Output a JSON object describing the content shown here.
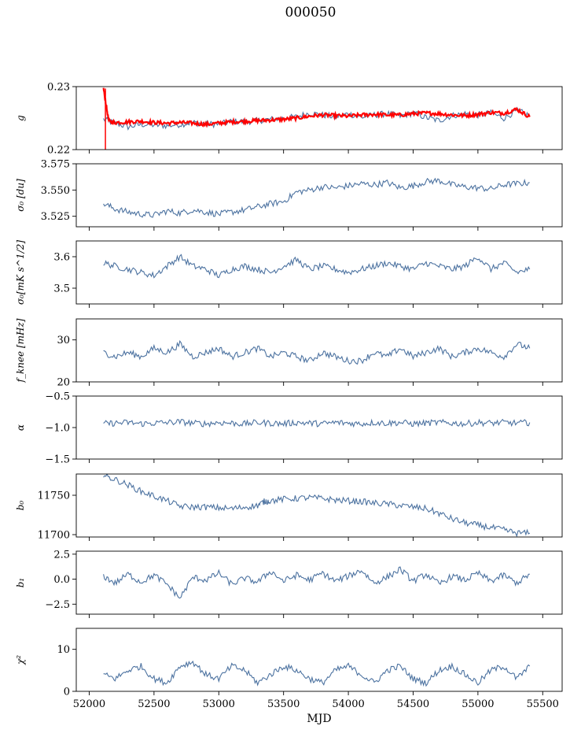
{
  "title": "000050",
  "colors": {
    "series": "#4c72a0",
    "highlight": "#ff0000",
    "axis": "#000000"
  },
  "chart_data": {
    "type": "line",
    "xlabel": "MJD",
    "xlim": [
      51900,
      55650
    ],
    "xticks": [
      52000,
      52500,
      53000,
      53500,
      54000,
      54500,
      55000,
      55500
    ],
    "panels": [
      {
        "ylabel": "g",
        "ylim": [
          0.22,
          0.23
        ],
        "yticks": [
          0.22,
          0.23
        ],
        "ytick_labels": [
          "0.22",
          "0.23"
        ],
        "series": [
          {
            "role": "noisy",
            "x": [
              52110,
              52200,
              52300,
              52400,
              52500,
              52600,
              52700,
              52800,
              52900,
              53000,
              53100,
              53200,
              53300,
              53400,
              53500,
              53600,
              53700,
              53800,
              53900,
              54000,
              54100,
              54200,
              54300,
              54400,
              54500,
              54600,
              54700,
              54800,
              54900,
              55000,
              55100,
              55200,
              55300,
              55400
            ],
            "y": [
              0.2248,
              0.2242,
              0.2236,
              0.224,
              0.2239,
              0.2238,
              0.224,
              0.2243,
              0.2241,
              0.224,
              0.2245,
              0.2244,
              0.2246,
              0.2248,
              0.225,
              0.2252,
              0.2258,
              0.2255,
              0.2252,
              0.2257,
              0.2251,
              0.2255,
              0.2257,
              0.2253,
              0.2258,
              0.2251,
              0.2246,
              0.2254,
              0.2257,
              0.2255,
              0.2258,
              0.225,
              0.2262,
              0.2254
            ]
          },
          {
            "role": "fit",
            "x": [
              52110,
              52150,
              52200,
              52300,
              52400,
              52500,
              52600,
              52700,
              52800,
              52900,
              53000,
              53100,
              53200,
              53300,
              53400,
              53500,
              53600,
              53700,
              53800,
              53900,
              54000,
              54100,
              54200,
              54300,
              54400,
              54500,
              54600,
              54700,
              54800,
              54900,
              55000,
              55100,
              55200,
              55300,
              55400
            ],
            "y": [
              0.2297,
              0.2246,
              0.2243,
              0.2244,
              0.2245,
              0.2243,
              0.2242,
              0.2243,
              0.2242,
              0.224,
              0.2242,
              0.2244,
              0.2245,
              0.2246,
              0.2247,
              0.2248,
              0.225,
              0.2253,
              0.2255,
              0.2254,
              0.2253,
              0.2255,
              0.2256,
              0.2255,
              0.2255,
              0.2257,
              0.2258,
              0.2257,
              0.2255,
              0.2254,
              0.2256,
              0.2259,
              0.2258,
              0.2264,
              0.2252
            ]
          }
        ]
      },
      {
        "ylabel": "σ₀ [du]",
        "ylim": [
          3.515,
          3.575
        ],
        "yticks": [
          3.525,
          3.55,
          3.575
        ],
        "ytick_labels": [
          "3.525",
          "3.550",
          "3.575"
        ],
        "series": [
          {
            "role": "noisy",
            "x": [
              52110,
              52200,
              52300,
              52400,
              52500,
              52600,
              52700,
              52800,
              52900,
              53000,
              53100,
              53200,
              53300,
              53400,
              53500,
              53600,
              53700,
              53800,
              53900,
              54000,
              54100,
              54200,
              54300,
              54400,
              54500,
              54600,
              54700,
              54800,
              54900,
              55000,
              55100,
              55200,
              55300,
              55400
            ],
            "y": [
              3.537,
              3.532,
              3.529,
              3.527,
              3.526,
              3.53,
              3.528,
              3.531,
              3.529,
              3.527,
              3.529,
              3.531,
              3.534,
              3.537,
              3.539,
              3.548,
              3.55,
              3.553,
              3.552,
              3.554,
              3.556,
              3.555,
              3.557,
              3.552,
              3.554,
              3.558,
              3.559,
              3.555,
              3.553,
              3.552,
              3.551,
              3.555,
              3.556,
              3.557
            ]
          }
        ]
      },
      {
        "ylabel": "σ₀[mK s^1/2]",
        "ylim": [
          3.45,
          3.65
        ],
        "yticks": [
          3.5,
          3.6
        ],
        "ytick_labels": [
          "3.5",
          "3.6"
        ],
        "series": [
          {
            "role": "noisy",
            "x": [
              52110,
              52200,
              52300,
              52400,
              52500,
              52600,
              52700,
              52800,
              52900,
              53000,
              53100,
              53200,
              53300,
              53400,
              53500,
              53600,
              53700,
              53800,
              53900,
              54000,
              54100,
              54200,
              54300,
              54400,
              54500,
              54600,
              54700,
              54800,
              54900,
              55000,
              55100,
              55200,
              55300,
              55400
            ],
            "y": [
              3.58,
              3.57,
              3.56,
              3.55,
              3.54,
              3.57,
              3.6,
              3.57,
              3.56,
              3.54,
              3.56,
              3.57,
              3.56,
              3.55,
              3.57,
              3.59,
              3.56,
              3.57,
              3.56,
              3.55,
              3.56,
              3.57,
              3.58,
              3.57,
              3.56,
              3.58,
              3.57,
              3.56,
              3.57,
              3.6,
              3.56,
              3.58,
              3.55,
              3.56
            ]
          }
        ]
      },
      {
        "ylabel": "f_knee [mHz]",
        "ylim": [
          20,
          35
        ],
        "yticks": [
          20,
          30
        ],
        "ytick_labels": [
          "20",
          "30"
        ],
        "series": [
          {
            "role": "noisy",
            "x": [
              52110,
              52200,
              52300,
              52400,
              52500,
              52600,
              52700,
              52800,
              52900,
              53000,
              53100,
              53200,
              53300,
              53400,
              53500,
              53600,
              53700,
              53800,
              53900,
              54000,
              54100,
              54200,
              54300,
              54400,
              54500,
              54600,
              54700,
              54800,
              54900,
              55000,
              55100,
              55200,
              55300,
              55400
            ],
            "y": [
              27,
              26,
              27,
              26,
              28,
              27,
              29,
              26,
              27,
              28,
              26,
              27,
              28,
              26,
              27,
              26,
              25,
              27,
              26,
              25,
              25,
              27,
              26,
              28,
              26,
              27,
              28,
              26,
              27,
              28,
              27,
              26,
              29,
              28
            ]
          }
        ]
      },
      {
        "ylabel": "α",
        "ylim": [
          -1.5,
          -0.5
        ],
        "yticks": [
          -1.5,
          -1.0,
          -0.5
        ],
        "ytick_labels": [
          "−1.5",
          "−1.0",
          "−0.5"
        ],
        "series": [
          {
            "role": "noisy",
            "x": [
              52110,
              52200,
              52300,
              52400,
              52500,
              52600,
              52700,
              52800,
              52900,
              53000,
              53100,
              53200,
              53300,
              53400,
              53500,
              53600,
              53700,
              53800,
              53900,
              54000,
              54100,
              54200,
              54300,
              54400,
              54500,
              54600,
              54700,
              54800,
              54900,
              55000,
              55100,
              55200,
              55300,
              55400
            ],
            "y": [
              -0.94,
              -0.93,
              -0.92,
              -0.94,
              -0.93,
              -0.92,
              -0.91,
              -0.93,
              -0.94,
              -0.92,
              -0.93,
              -0.94,
              -0.92,
              -0.93,
              -0.94,
              -0.92,
              -0.93,
              -0.94,
              -0.92,
              -0.93,
              -0.94,
              -0.92,
              -0.93,
              -0.92,
              -0.94,
              -0.93,
              -0.92,
              -0.93,
              -0.94,
              -0.92,
              -0.93,
              -0.92,
              -0.93,
              -0.92
            ]
          }
        ]
      },
      {
        "ylabel": "b₀",
        "ylim": [
          11697,
          11777
        ],
        "yticks": [
          11700,
          11750
        ],
        "ytick_labels": [
          "11700",
          "11750"
        ],
        "series": [
          {
            "role": "noisy",
            "x": [
              52110,
              52200,
              52300,
              52400,
              52500,
              52600,
              52700,
              52800,
              52900,
              53000,
              53100,
              53200,
              53300,
              53350,
              53400,
              53500,
              53600,
              53700,
              53800,
              53900,
              54000,
              54100,
              54200,
              54300,
              54400,
              54500,
              54600,
              54700,
              54800,
              54900,
              55000,
              55100,
              55200,
              55300,
              55400
            ],
            "y": [
              11775,
              11770,
              11763,
              11755,
              11749,
              11743,
              11736,
              11735,
              11735,
              11734,
              11733,
              11735,
              11737,
              11742,
              11743,
              11745,
              11746,
              11747,
              11746,
              11744,
              11743,
              11742,
              11740,
              11739,
              11737,
              11735,
              11733,
              11727,
              11720,
              11715,
              11712,
              11709,
              11706,
              11702,
              11702
            ]
          }
        ]
      },
      {
        "ylabel": "b₁",
        "ylim": [
          -3.5,
          2.8
        ],
        "yticks": [
          -2.5,
          0.0,
          2.5
        ],
        "ytick_labels": [
          "−2.5",
          "0.0",
          "2.5"
        ],
        "series": [
          {
            "role": "noisy",
            "x": [
              52110,
              52200,
              52300,
              52400,
              52500,
              52600,
              52700,
              52800,
              52900,
              53000,
              53100,
              53200,
              53300,
              53400,
              53500,
              53600,
              53700,
              53800,
              53900,
              54000,
              54100,
              54200,
              54300,
              54400,
              54500,
              54600,
              54700,
              54800,
              54900,
              55000,
              55100,
              55200,
              55300,
              55400
            ],
            "y": [
              0.3,
              -0.4,
              0.5,
              -0.3,
              0.4,
              -0.5,
              -1.9,
              0.2,
              -0.1,
              0.6,
              -0.5,
              0.1,
              -0.3,
              0.8,
              -0.2,
              0.4,
              -0.1,
              0.6,
              -0.2,
              0.3,
              0.9,
              -0.4,
              0.2,
              1.0,
              -0.2,
              0.5,
              -0.5,
              0.3,
              -0.1,
              0.6,
              -0.2,
              0.4,
              -0.4,
              0.5
            ]
          }
        ]
      },
      {
        "ylabel": "χ²",
        "ylim": [
          0,
          15
        ],
        "yticks": [
          0,
          10
        ],
        "ytick_labels": [
          "0",
          "10"
        ],
        "series": [
          {
            "role": "noisy",
            "x": [
              52110,
              52200,
              52300,
              52400,
              52500,
              52600,
              52700,
              52800,
              52900,
              53000,
              53100,
              53200,
              53300,
              53400,
              53500,
              53600,
              53700,
              53800,
              53900,
              54000,
              54100,
              54200,
              54300,
              54400,
              54500,
              54600,
              54700,
              54800,
              54900,
              55000,
              55100,
              55200,
              55300,
              55400
            ],
            "y": [
              4,
              3,
              5,
              6,
              3,
              2,
              6,
              7,
              4,
              3,
              6,
              5,
              2,
              4,
              6,
              5,
              3,
              2,
              5,
              6,
              4,
              2,
              5,
              6,
              3,
              2,
              5,
              6,
              4,
              2,
              5,
              6,
              3,
              6
            ]
          }
        ]
      }
    ]
  }
}
